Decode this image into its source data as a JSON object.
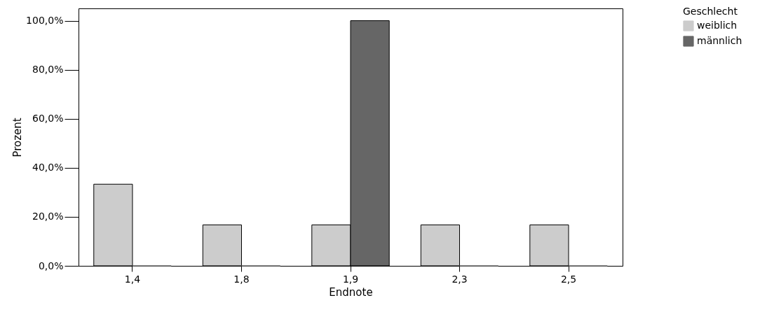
{
  "chart_data": {
    "type": "bar",
    "xlabel": "Endnote",
    "ylabel": "Prozent",
    "legend_title": "Geschlecht",
    "legend": "top right",
    "grid": false,
    "categories": [
      "1,4",
      "1,8",
      "1,9",
      "2,3",
      "2,5"
    ],
    "series": [
      {
        "name": "weiblich",
        "color": "#cccccc",
        "values": [
          33.3,
          16.7,
          16.7,
          16.7,
          16.7
        ]
      },
      {
        "name": "männlich",
        "color": "#666666",
        "values": [
          0,
          0,
          100,
          0,
          0
        ]
      }
    ],
    "ylim": [
      0,
      105
    ],
    "yticks": [
      {
        "value": 0,
        "label": "0,0%"
      },
      {
        "value": 20,
        "label": "20,0%"
      },
      {
        "value": 40,
        "label": "40,0%"
      },
      {
        "value": 60,
        "label": "60,0%"
      },
      {
        "value": 80,
        "label": "80,0%"
      },
      {
        "value": 100,
        "label": "100,0%"
      }
    ]
  }
}
